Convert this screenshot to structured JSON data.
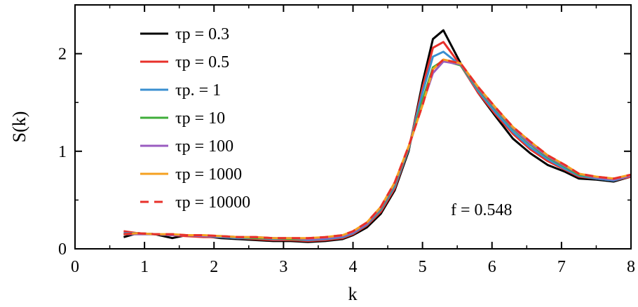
{
  "chart_data": {
    "type": "line",
    "xlabel": "k",
    "ylabel": "S(k)",
    "xlim": [
      0,
      8
    ],
    "ylim": [
      0,
      2.5
    ],
    "xticks": [
      "0",
      "1",
      "2",
      "3",
      "4",
      "5",
      "6",
      "7",
      "8"
    ],
    "yticks": [
      "0",
      "1",
      "2"
    ],
    "grid": false,
    "legend_position": "top-left",
    "annotation": "f = 0.548",
    "series": [
      {
        "name": "τp = 0.3",
        "color": "#000000",
        "dash": false,
        "x": [
          0.7,
          0.9,
          1.15,
          1.4,
          1.6,
          1.85,
          2.1,
          2.35,
          2.6,
          2.85,
          3.1,
          3.35,
          3.6,
          3.85,
          4.0,
          4.2,
          4.4,
          4.6,
          4.8,
          5.0,
          5.15,
          5.3,
          5.55,
          5.8,
          6.05,
          6.3,
          6.55,
          6.8,
          7.05,
          7.25,
          7.5,
          7.75,
          8.0
        ],
        "y": [
          0.12,
          0.16,
          0.15,
          0.11,
          0.14,
          0.13,
          0.11,
          0.1,
          0.09,
          0.08,
          0.08,
          0.07,
          0.08,
          0.1,
          0.14,
          0.22,
          0.36,
          0.6,
          1.0,
          1.7,
          2.15,
          2.24,
          1.9,
          1.6,
          1.36,
          1.13,
          0.98,
          0.86,
          0.79,
          0.72,
          0.71,
          0.69,
          0.74
        ]
      },
      {
        "name": "τp = 0.5",
        "color": "#e8302a",
        "dash": false,
        "x": [
          0.7,
          0.9,
          1.15,
          1.4,
          1.6,
          1.85,
          2.1,
          2.35,
          2.6,
          2.85,
          3.1,
          3.35,
          3.6,
          3.85,
          4.0,
          4.2,
          4.4,
          4.6,
          4.8,
          5.0,
          5.15,
          5.3,
          5.55,
          5.8,
          6.05,
          6.3,
          6.55,
          6.8,
          7.05,
          7.25,
          7.5,
          7.75,
          8.0
        ],
        "y": [
          0.18,
          0.16,
          0.15,
          0.14,
          0.13,
          0.12,
          0.12,
          0.11,
          0.1,
          0.09,
          0.09,
          0.08,
          0.09,
          0.11,
          0.15,
          0.24,
          0.38,
          0.62,
          1.02,
          1.65,
          2.06,
          2.12,
          1.88,
          1.6,
          1.38,
          1.18,
          1.02,
          0.9,
          0.81,
          0.74,
          0.72,
          0.7,
          0.74
        ]
      },
      {
        "name": "τp. = 1",
        "color": "#3a8fd0",
        "dash": false,
        "x": [
          0.7,
          0.9,
          1.15,
          1.4,
          1.6,
          1.85,
          2.1,
          2.35,
          2.6,
          2.85,
          3.1,
          3.35,
          3.6,
          3.85,
          4.0,
          4.2,
          4.4,
          4.6,
          4.8,
          5.0,
          5.15,
          5.3,
          5.55,
          5.8,
          6.05,
          6.3,
          6.55,
          6.8,
          7.05,
          7.25,
          7.5,
          7.75,
          8.0
        ],
        "y": [
          0.16,
          0.16,
          0.15,
          0.14,
          0.14,
          0.13,
          0.12,
          0.11,
          0.11,
          0.1,
          0.1,
          0.09,
          0.1,
          0.12,
          0.16,
          0.25,
          0.4,
          0.64,
          1.02,
          1.6,
          1.97,
          2.02,
          1.88,
          1.62,
          1.4,
          1.2,
          1.04,
          0.92,
          0.82,
          0.75,
          0.72,
          0.7,
          0.75
        ]
      },
      {
        "name": "τp = 10",
        "color": "#3fae3a",
        "dash": false,
        "x": [
          0.7,
          0.9,
          1.15,
          1.4,
          1.6,
          1.85,
          2.1,
          2.35,
          2.6,
          2.85,
          3.1,
          3.35,
          3.6,
          3.85,
          4.0,
          4.2,
          4.4,
          4.6,
          4.8,
          5.0,
          5.15,
          5.3,
          5.55,
          5.8,
          6.05,
          6.3,
          6.55,
          6.8,
          7.05,
          7.25,
          7.5,
          7.75,
          8.0
        ],
        "y": [
          0.15,
          0.15,
          0.15,
          0.14,
          0.14,
          0.13,
          0.13,
          0.12,
          0.11,
          0.11,
          0.1,
          0.1,
          0.11,
          0.13,
          0.17,
          0.26,
          0.41,
          0.66,
          1.03,
          1.52,
          1.86,
          1.93,
          1.88,
          1.64,
          1.43,
          1.23,
          1.07,
          0.94,
          0.84,
          0.76,
          0.73,
          0.71,
          0.75
        ]
      },
      {
        "name": "τp = 100",
        "color": "#9a5cc0",
        "dash": false,
        "x": [
          0.7,
          0.9,
          1.15,
          1.4,
          1.6,
          1.85,
          2.1,
          2.35,
          2.6,
          2.85,
          3.1,
          3.35,
          3.6,
          3.85,
          4.0,
          4.2,
          4.4,
          4.6,
          4.8,
          5.0,
          5.15,
          5.3,
          5.55,
          5.8,
          6.05,
          6.3,
          6.55,
          6.8,
          7.05,
          7.25,
          7.5,
          7.75,
          8.0
        ],
        "y": [
          0.15,
          0.15,
          0.15,
          0.14,
          0.14,
          0.13,
          0.13,
          0.12,
          0.12,
          0.11,
          0.11,
          0.1,
          0.11,
          0.13,
          0.17,
          0.26,
          0.42,
          0.67,
          1.04,
          1.48,
          1.8,
          1.92,
          1.89,
          1.65,
          1.44,
          1.24,
          1.08,
          0.95,
          0.85,
          0.77,
          0.73,
          0.71,
          0.75
        ]
      },
      {
        "name": "τp = 1000",
        "color": "#f5a020",
        "dash": false,
        "x": [
          0.7,
          0.9,
          1.15,
          1.4,
          1.6,
          1.85,
          2.1,
          2.35,
          2.6,
          2.85,
          3.1,
          3.35,
          3.6,
          3.85,
          4.0,
          4.2,
          4.4,
          4.6,
          4.8,
          5.0,
          5.15,
          5.3,
          5.55,
          5.8,
          6.05,
          6.3,
          6.55,
          6.8,
          7.05,
          7.25,
          7.5,
          7.75,
          8.0
        ],
        "y": [
          0.15,
          0.16,
          0.15,
          0.15,
          0.14,
          0.14,
          0.13,
          0.12,
          0.12,
          0.11,
          0.11,
          0.11,
          0.12,
          0.14,
          0.18,
          0.27,
          0.43,
          0.68,
          1.05,
          1.47,
          1.84,
          1.94,
          1.9,
          1.66,
          1.45,
          1.25,
          1.1,
          0.96,
          0.86,
          0.77,
          0.74,
          0.72,
          0.76
        ]
      },
      {
        "name": "τp = 10000",
        "color": "#e8302a",
        "dash": true,
        "x": [
          0.7,
          0.9,
          1.15,
          1.4,
          1.6,
          1.85,
          2.1,
          2.35,
          2.6,
          2.85,
          3.1,
          3.35,
          3.6,
          3.85,
          4.0,
          4.2,
          4.4,
          4.6,
          4.8,
          5.0,
          5.15,
          5.3,
          5.55,
          5.8,
          6.05,
          6.3,
          6.55,
          6.8,
          7.05,
          7.25,
          7.5,
          7.75,
          8.0
        ],
        "y": [
          0.15,
          0.16,
          0.15,
          0.15,
          0.14,
          0.14,
          0.13,
          0.12,
          0.12,
          0.11,
          0.11,
          0.11,
          0.12,
          0.14,
          0.18,
          0.27,
          0.43,
          0.68,
          1.05,
          1.47,
          1.84,
          1.94,
          1.9,
          1.66,
          1.45,
          1.25,
          1.1,
          0.96,
          0.86,
          0.77,
          0.74,
          0.72,
          0.76
        ]
      }
    ]
  }
}
